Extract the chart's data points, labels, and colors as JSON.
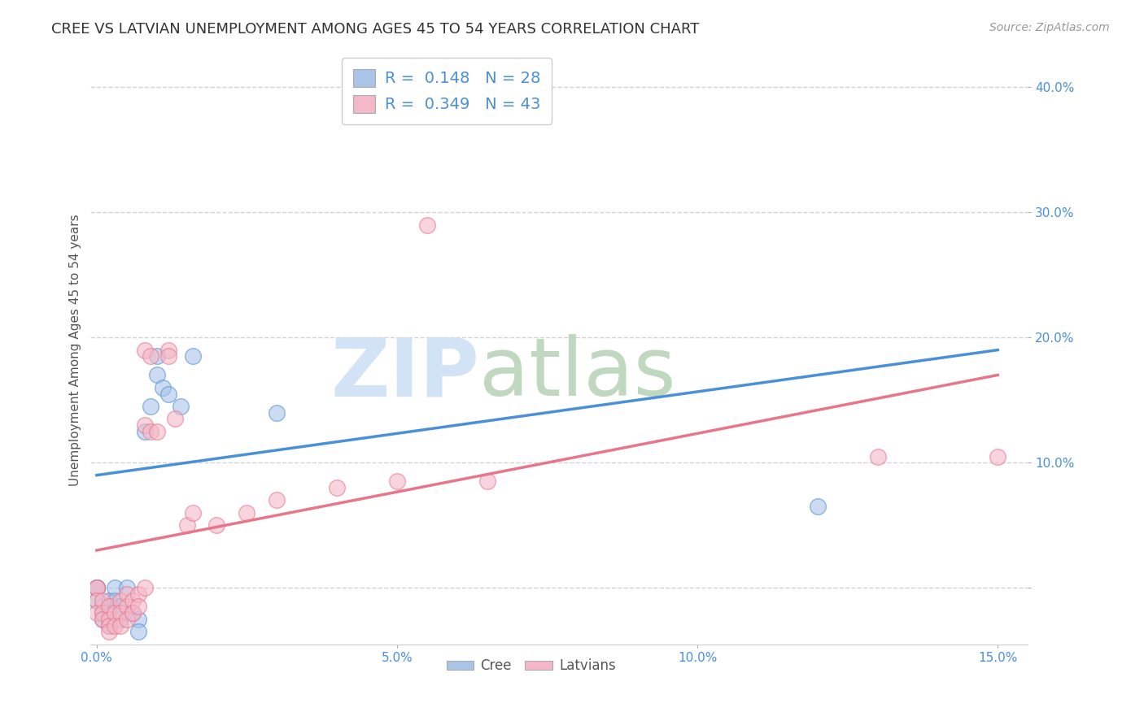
{
  "title": "CREE VS LATVIAN UNEMPLOYMENT AMONG AGES 45 TO 54 YEARS CORRELATION CHART",
  "source": "Source: ZipAtlas.com",
  "ylabel": "Unemployment Among Ages 45 to 54 years",
  "xlim": [
    -0.001,
    0.155
  ],
  "ylim": [
    -0.045,
    0.425
  ],
  "xticks": [
    0.0,
    0.05,
    0.1,
    0.15
  ],
  "xticklabels": [
    "0.0%",
    "5.0%",
    "10.0%",
    "15.0%"
  ],
  "yticks": [
    0.0,
    0.1,
    0.2,
    0.3,
    0.4
  ],
  "yticklabels": [
    "",
    "10.0%",
    "20.0%",
    "30.0%",
    "40.0%"
  ],
  "cree_color": "#aac4e8",
  "latvian_color": "#f4b8c8",
  "cree_line_color": "#4a90d9",
  "latvian_line_color": "#e8758a",
  "legend_r_cree": "R =  0.148",
  "legend_n_cree": "N = 28",
  "legend_r_latvian": "R =  0.349",
  "legend_n_latvian": "N = 43",
  "cree_points": [
    [
      0.0,
      0.0
    ],
    [
      0.0,
      0.0
    ],
    [
      0.0,
      0.0
    ],
    [
      0.0,
      -0.01
    ],
    [
      0.001,
      -0.015
    ],
    [
      0.001,
      -0.02
    ],
    [
      0.001,
      -0.025
    ],
    [
      0.002,
      -0.01
    ],
    [
      0.002,
      -0.02
    ],
    [
      0.002,
      -0.03
    ],
    [
      0.003,
      0.0
    ],
    [
      0.003,
      -0.01
    ],
    [
      0.004,
      -0.015
    ],
    [
      0.004,
      -0.025
    ],
    [
      0.005,
      0.0
    ],
    [
      0.006,
      -0.02
    ],
    [
      0.007,
      -0.025
    ],
    [
      0.007,
      -0.035
    ],
    [
      0.008,
      0.125
    ],
    [
      0.009,
      0.145
    ],
    [
      0.01,
      0.17
    ],
    [
      0.01,
      0.185
    ],
    [
      0.011,
      0.16
    ],
    [
      0.012,
      0.155
    ],
    [
      0.014,
      0.145
    ],
    [
      0.016,
      0.185
    ],
    [
      0.03,
      0.14
    ],
    [
      0.12,
      0.065
    ]
  ],
  "latvian_points": [
    [
      0.0,
      0.0
    ],
    [
      0.0,
      0.0
    ],
    [
      0.0,
      -0.01
    ],
    [
      0.0,
      -0.02
    ],
    [
      0.001,
      -0.01
    ],
    [
      0.001,
      -0.02
    ],
    [
      0.001,
      -0.025
    ],
    [
      0.002,
      -0.015
    ],
    [
      0.002,
      -0.025
    ],
    [
      0.002,
      -0.03
    ],
    [
      0.002,
      -0.035
    ],
    [
      0.003,
      -0.02
    ],
    [
      0.003,
      -0.03
    ],
    [
      0.004,
      -0.01
    ],
    [
      0.004,
      -0.02
    ],
    [
      0.004,
      -0.03
    ],
    [
      0.005,
      -0.005
    ],
    [
      0.005,
      -0.015
    ],
    [
      0.005,
      -0.025
    ],
    [
      0.006,
      -0.01
    ],
    [
      0.006,
      -0.02
    ],
    [
      0.007,
      -0.005
    ],
    [
      0.007,
      -0.015
    ],
    [
      0.008,
      0.0
    ],
    [
      0.008,
      0.13
    ],
    [
      0.008,
      0.19
    ],
    [
      0.009,
      0.125
    ],
    [
      0.009,
      0.185
    ],
    [
      0.01,
      0.125
    ],
    [
      0.012,
      0.19
    ],
    [
      0.012,
      0.185
    ],
    [
      0.013,
      0.135
    ],
    [
      0.015,
      0.05
    ],
    [
      0.016,
      0.06
    ],
    [
      0.02,
      0.05
    ],
    [
      0.025,
      0.06
    ],
    [
      0.03,
      0.07
    ],
    [
      0.04,
      0.08
    ],
    [
      0.05,
      0.085
    ],
    [
      0.055,
      0.29
    ],
    [
      0.065,
      0.085
    ],
    [
      0.13,
      0.105
    ],
    [
      0.15,
      0.105
    ]
  ],
  "background_color": "#ffffff",
  "grid_color": "#d8d0d0",
  "title_fontsize": 13,
  "axis_label_fontsize": 11,
  "tick_fontsize": 11,
  "tick_color": "#4a90d9"
}
